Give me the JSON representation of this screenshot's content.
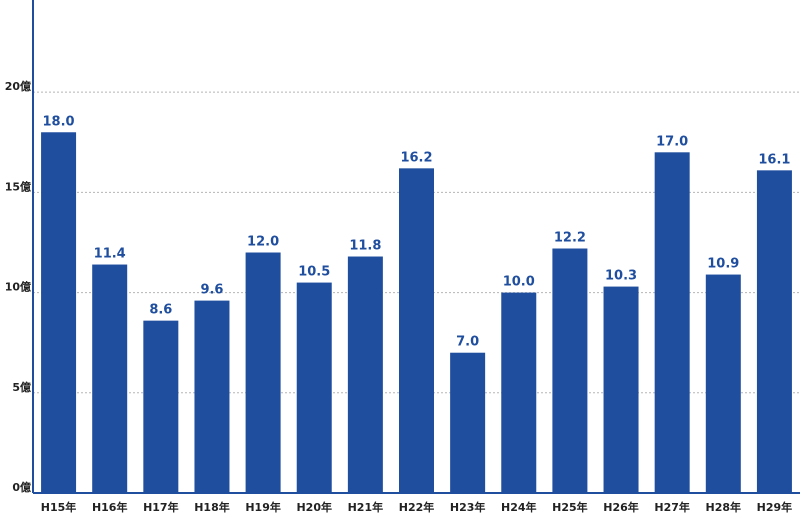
{
  "chart_data": {
    "type": "bar",
    "categories": [
      "H15年",
      "H16年",
      "H17年",
      "H18年",
      "H19年",
      "H20年",
      "H21年",
      "H22年",
      "H23年",
      "H24年",
      "H25年",
      "H26年",
      "H27年",
      "H28年",
      "H29年"
    ],
    "values": [
      18.0,
      11.4,
      8.6,
      9.6,
      12.0,
      10.5,
      11.8,
      16.2,
      7.0,
      10.0,
      12.2,
      10.3,
      17.0,
      10.9,
      16.1
    ],
    "value_labels": [
      "18.0",
      "11.4",
      "8.6",
      "9.6",
      "12.0",
      "10.5",
      "11.8",
      "16.2",
      "7.0",
      "10.0",
      "12.2",
      "10.3",
      "17.0",
      "10.9",
      "16.1"
    ],
    "yticks": [
      0,
      5,
      10,
      15,
      20
    ],
    "ytick_labels": [
      "0億",
      "5億",
      "10億",
      "15億",
      "20億"
    ],
    "ylim": [
      0,
      24.5
    ],
    "grid": true,
    "colors": {
      "bar": "#1f4e9e",
      "label": "#1f4e9e",
      "axis": "#1f4e9e",
      "grid": "#b5b5b5"
    },
    "title": "",
    "xlabel": "",
    "ylabel": ""
  }
}
